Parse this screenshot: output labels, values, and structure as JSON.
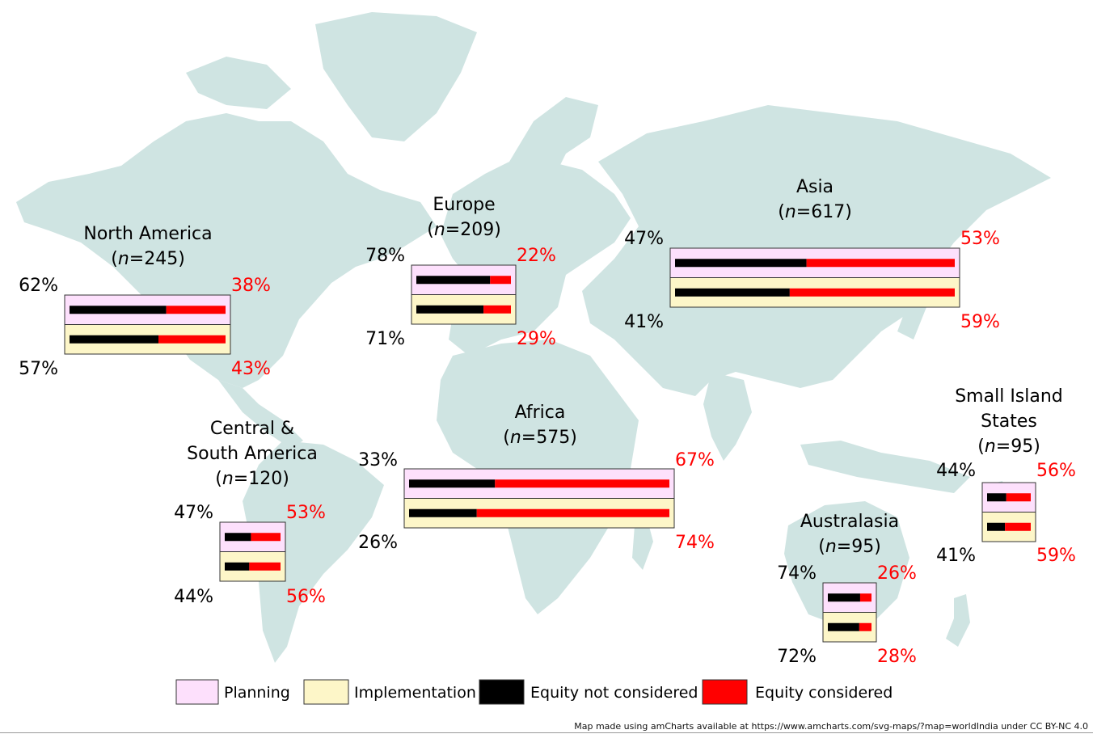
{
  "colors": {
    "land": "#cfe4e2",
    "planning": "#fde0fc",
    "implementation": "#fdf6c8",
    "not_considered": "#000000",
    "considered": "#ff0000"
  },
  "regions": [
    {
      "name": "North America",
      "n": "245",
      "planning": {
        "not": "62%",
        "yes": "38%"
      },
      "implementation": {
        "not": "57%",
        "yes": "43%"
      }
    },
    {
      "name": "Europe",
      "n": "209",
      "planning": {
        "not": "78%",
        "yes": "22%"
      },
      "implementation": {
        "not": "71%",
        "yes": "29%"
      }
    },
    {
      "name": "Asia",
      "n": "617",
      "planning": {
        "not": "47%",
        "yes": "53%"
      },
      "implementation": {
        "not": "41%",
        "yes": "59%"
      }
    },
    {
      "name": "Central & South America",
      "n": "120",
      "planning": {
        "not": "47%",
        "yes": "53%"
      },
      "implementation": {
        "not": "44%",
        "yes": "56%"
      }
    },
    {
      "name": "Africa",
      "n": "575",
      "planning": {
        "not": "33%",
        "yes": "67%"
      },
      "implementation": {
        "not": "26%",
        "yes": "74%"
      }
    },
    {
      "name": "Australasia",
      "n": "95",
      "planning": {
        "not": "74%",
        "yes": "26%"
      },
      "implementation": {
        "not": "72%",
        "yes": "28%"
      }
    },
    {
      "name": "Small Island States",
      "n": "95",
      "planning": {
        "not": "44%",
        "yes": "56%"
      },
      "implementation": {
        "not": "41%",
        "yes": "59%"
      }
    }
  ],
  "legend": {
    "planning": "Planning",
    "implementation": "Implementation",
    "not_considered": "Equity not considered",
    "considered": "Equity considered"
  },
  "credit": "Map made using amCharts available at https://www.amcharts.com/svg-maps/?map=worldIndia under CC BY-NC 4.0"
}
